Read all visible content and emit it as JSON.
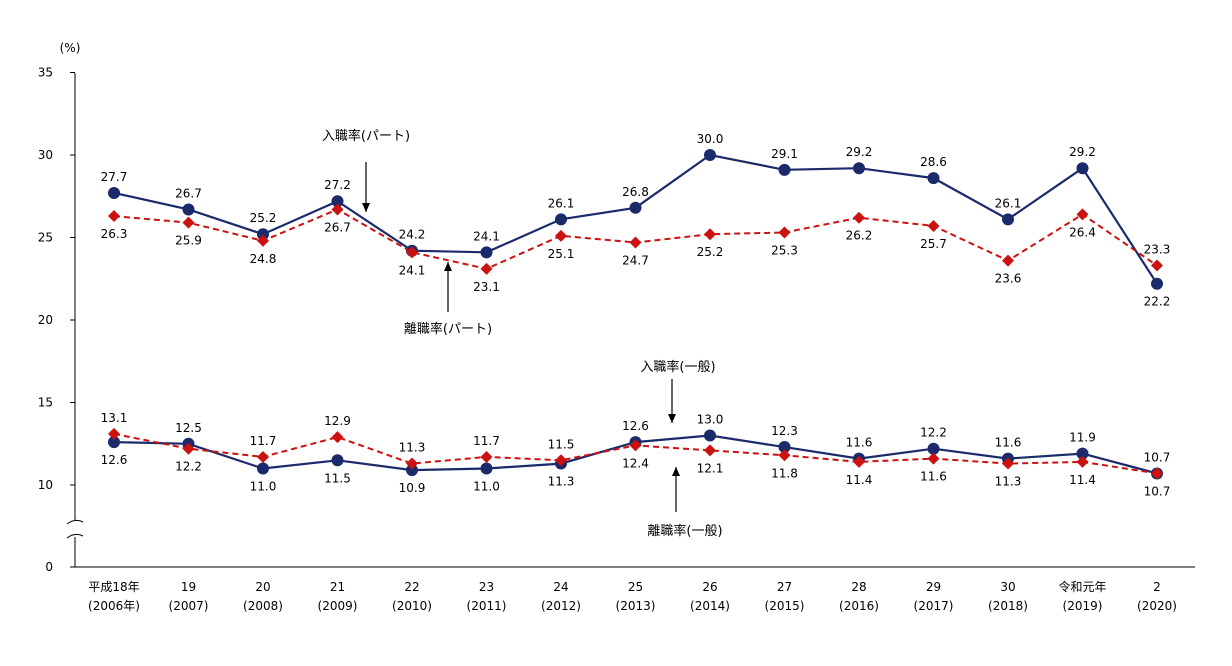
{
  "chart_data": {
    "type": "line",
    "title": "",
    "xlabel": "",
    "ylabel": "(%)",
    "ylim": [
      0,
      35
    ],
    "y_ticks": [
      "0",
      "10",
      "15",
      "20",
      "25",
      "30",
      "35"
    ],
    "y_axis_break": true,
    "grid": false,
    "categories": [
      {
        "line1": "平成18年",
        "line2": "(2006年)"
      },
      {
        "line1": "19",
        "line2": "(2007)"
      },
      {
        "line1": "20",
        "line2": "(2008)"
      },
      {
        "line1": "21",
        "line2": "(2009)"
      },
      {
        "line1": "22",
        "line2": "(2010)"
      },
      {
        "line1": "23",
        "line2": "(2011)"
      },
      {
        "line1": "24",
        "line2": "(2012)"
      },
      {
        "line1": "25",
        "line2": "(2013)"
      },
      {
        "line1": "26",
        "line2": "(2014)"
      },
      {
        "line1": "27",
        "line2": "(2015)"
      },
      {
        "line1": "28",
        "line2": "(2016)"
      },
      {
        "line1": "29",
        "line2": "(2017)"
      },
      {
        "line1": "30",
        "line2": "(2018)"
      },
      {
        "line1": "令和元年",
        "line2": "(2019)"
      },
      {
        "line1": "2",
        "line2": "(2020)"
      }
    ],
    "series": [
      {
        "key": "hire_part",
        "name": "入職率(パート)",
        "color": "#1b2a6b",
        "style": "solid",
        "marker": "circle",
        "values": [
          27.7,
          26.7,
          25.2,
          27.2,
          24.2,
          24.1,
          26.1,
          26.8,
          30.0,
          29.1,
          29.2,
          28.6,
          26.1,
          29.2,
          22.2
        ],
        "labels": [
          "27.7",
          "26.7",
          "25.2",
          "27.2",
          "24.2",
          "24.1",
          "26.1",
          "26.8",
          "30.0",
          "29.1",
          "29.2",
          "28.6",
          "26.1",
          "29.2",
          "22.2"
        ],
        "label_pos": [
          "above",
          "above",
          "above",
          "above",
          "above",
          "above",
          "above",
          "above",
          "above",
          "above",
          "above",
          "above",
          "above",
          "above",
          "below"
        ]
      },
      {
        "key": "sep_part",
        "name": "離職率(パート)",
        "color": "#cc1111",
        "style": "dashed",
        "marker": "diamond",
        "values": [
          26.3,
          25.9,
          24.8,
          26.7,
          24.1,
          23.1,
          25.1,
          24.7,
          25.2,
          25.3,
          26.2,
          25.7,
          23.6,
          26.4,
          23.3
        ],
        "labels": [
          "26.3",
          "25.9",
          "24.8",
          "26.7",
          "24.1",
          "23.1",
          "25.1",
          "24.7",
          "25.2",
          "25.3",
          "26.2",
          "25.7",
          "23.6",
          "26.4",
          "23.3"
        ],
        "label_pos": [
          "below",
          "below",
          "below",
          "below",
          "below",
          "below",
          "below",
          "below",
          "below",
          "below",
          "below",
          "below",
          "below",
          "below",
          "above"
        ]
      },
      {
        "key": "hire_gen",
        "name": "入職率(一般)",
        "color": "#1b2a6b",
        "style": "solid",
        "marker": "circle",
        "values": [
          12.6,
          12.5,
          11.0,
          11.5,
          10.9,
          11.0,
          11.3,
          12.6,
          13.0,
          12.3,
          11.6,
          12.2,
          11.6,
          11.9,
          10.7
        ],
        "labels": [
          "12.6",
          "12.5",
          "11.0",
          "11.5",
          "10.9",
          "11.0",
          "11.3",
          "12.6",
          "13.0",
          "12.3",
          "11.6",
          "12.2",
          "11.6",
          "11.9",
          "10.7"
        ],
        "label_pos": [
          "below",
          "above",
          "below",
          "below",
          "below",
          "below",
          "below",
          "above",
          "above",
          "above",
          "above",
          "above",
          "above",
          "above",
          "above"
        ]
      },
      {
        "key": "sep_gen",
        "name": "離職率(一般)",
        "color": "#cc1111",
        "style": "dashed",
        "marker": "diamond",
        "values": [
          13.1,
          12.2,
          11.7,
          12.9,
          11.3,
          11.7,
          11.5,
          12.4,
          12.1,
          11.8,
          11.4,
          11.6,
          11.3,
          11.4,
          10.7
        ],
        "labels": [
          "13.1",
          "12.2",
          "11.7",
          "12.9",
          "11.3",
          "11.7",
          "11.5",
          "12.4",
          "12.1",
          "11.8",
          "11.4",
          "11.6",
          "11.3",
          "11.4",
          "10.7"
        ],
        "label_pos": [
          "above",
          "below",
          "above",
          "above",
          "above",
          "above",
          "above",
          "below",
          "below",
          "below",
          "below",
          "below",
          "below",
          "below",
          "below"
        ]
      }
    ],
    "annotations": [
      {
        "text": "入職率(パート)",
        "series": "hire_part"
      },
      {
        "text": "離職率(パート)",
        "series": "sep_part"
      },
      {
        "text": "入職率(一般)",
        "series": "hire_gen"
      },
      {
        "text": "離職率(一般)",
        "series": "sep_gen"
      }
    ]
  }
}
